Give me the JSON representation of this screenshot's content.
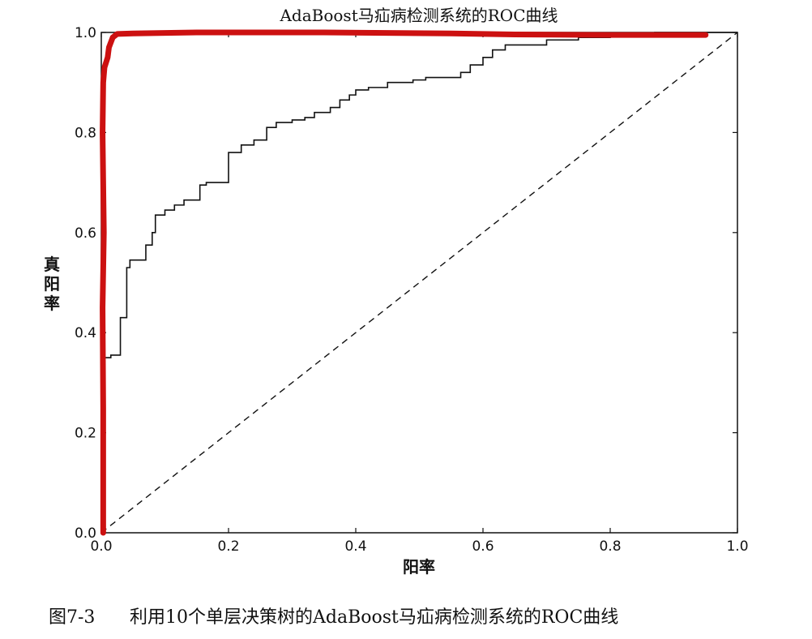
{
  "chart_data": {
    "type": "line",
    "title": "AdaBoost马疝病检测系统的ROC曲线",
    "xlabel": "阳率",
    "ylabel": "真阳率",
    "xlim": [
      0,
      1
    ],
    "ylim": [
      0,
      1
    ],
    "x_ticks": [
      "0.0",
      "0.2",
      "0.4",
      "0.6",
      "0.8",
      "1.0"
    ],
    "y_ticks": [
      "0.0",
      "0.2",
      "0.4",
      "0.6",
      "0.8",
      "1.0"
    ],
    "grid": false,
    "legend": "none",
    "series": [
      {
        "style": "solid-black-step",
        "color": "#111111",
        "points": [
          [
            0.0,
            0.0
          ],
          [
            0.0,
            0.34
          ],
          [
            0.005,
            0.34
          ],
          [
            0.005,
            0.35
          ],
          [
            0.015,
            0.35
          ],
          [
            0.015,
            0.355
          ],
          [
            0.03,
            0.355
          ],
          [
            0.03,
            0.43
          ],
          [
            0.04,
            0.43
          ],
          [
            0.04,
            0.53
          ],
          [
            0.045,
            0.53
          ],
          [
            0.045,
            0.545
          ],
          [
            0.07,
            0.545
          ],
          [
            0.07,
            0.575
          ],
          [
            0.08,
            0.575
          ],
          [
            0.08,
            0.6
          ],
          [
            0.085,
            0.6
          ],
          [
            0.085,
            0.635
          ],
          [
            0.1,
            0.635
          ],
          [
            0.1,
            0.645
          ],
          [
            0.115,
            0.645
          ],
          [
            0.115,
            0.655
          ],
          [
            0.13,
            0.655
          ],
          [
            0.13,
            0.665
          ],
          [
            0.155,
            0.665
          ],
          [
            0.155,
            0.695
          ],
          [
            0.165,
            0.695
          ],
          [
            0.165,
            0.7
          ],
          [
            0.2,
            0.7
          ],
          [
            0.2,
            0.76
          ],
          [
            0.22,
            0.76
          ],
          [
            0.22,
            0.775
          ],
          [
            0.24,
            0.775
          ],
          [
            0.24,
            0.785
          ],
          [
            0.26,
            0.785
          ],
          [
            0.26,
            0.81
          ],
          [
            0.275,
            0.81
          ],
          [
            0.275,
            0.82
          ],
          [
            0.3,
            0.82
          ],
          [
            0.3,
            0.825
          ],
          [
            0.32,
            0.825
          ],
          [
            0.32,
            0.83
          ],
          [
            0.335,
            0.83
          ],
          [
            0.335,
            0.84
          ],
          [
            0.36,
            0.84
          ],
          [
            0.36,
            0.85
          ],
          [
            0.375,
            0.85
          ],
          [
            0.375,
            0.865
          ],
          [
            0.39,
            0.865
          ],
          [
            0.39,
            0.875
          ],
          [
            0.4,
            0.875
          ],
          [
            0.4,
            0.885
          ],
          [
            0.42,
            0.885
          ],
          [
            0.42,
            0.89
          ],
          [
            0.45,
            0.89
          ],
          [
            0.45,
            0.9
          ],
          [
            0.49,
            0.9
          ],
          [
            0.49,
            0.905
          ],
          [
            0.51,
            0.905
          ],
          [
            0.51,
            0.91
          ],
          [
            0.565,
            0.91
          ],
          [
            0.565,
            0.92
          ],
          [
            0.58,
            0.92
          ],
          [
            0.58,
            0.935
          ],
          [
            0.6,
            0.935
          ],
          [
            0.6,
            0.95
          ],
          [
            0.615,
            0.95
          ],
          [
            0.615,
            0.965
          ],
          [
            0.635,
            0.965
          ],
          [
            0.635,
            0.975
          ],
          [
            0.7,
            0.975
          ],
          [
            0.7,
            0.985
          ],
          [
            0.75,
            0.985
          ],
          [
            0.75,
            0.99
          ],
          [
            0.8,
            0.99
          ],
          [
            0.8,
            0.995
          ],
          [
            0.87,
            0.995
          ],
          [
            0.87,
            1.0
          ],
          [
            1.0,
            1.0
          ]
        ]
      },
      {
        "style": "dashed-diagonal",
        "color": "#111111",
        "points": [
          [
            0,
            0
          ],
          [
            1,
            1
          ]
        ]
      },
      {
        "style": "red-marker-overlay",
        "color": "#cc1111",
        "points": [
          [
            0.003,
            0.0
          ],
          [
            0.003,
            0.25
          ],
          [
            0.002,
            0.45
          ],
          [
            0.004,
            0.6
          ],
          [
            0.002,
            0.8
          ],
          [
            0.003,
            0.9
          ],
          [
            0.005,
            0.93
          ],
          [
            0.01,
            0.95
          ],
          [
            0.012,
            0.97
          ],
          [
            0.018,
            0.99
          ],
          [
            0.025,
            0.997
          ],
          [
            0.05,
            0.998
          ],
          [
            0.15,
            1.0
          ],
          [
            0.35,
            1.0
          ],
          [
            0.55,
            0.998
          ],
          [
            0.65,
            0.996
          ],
          [
            0.8,
            0.995
          ],
          [
            0.95,
            0.995
          ]
        ]
      }
    ]
  },
  "caption": {
    "figure_no": "图7-3",
    "text": "利用10个单层决策树的AdaBoost马疝病检测系统的ROC曲线"
  }
}
